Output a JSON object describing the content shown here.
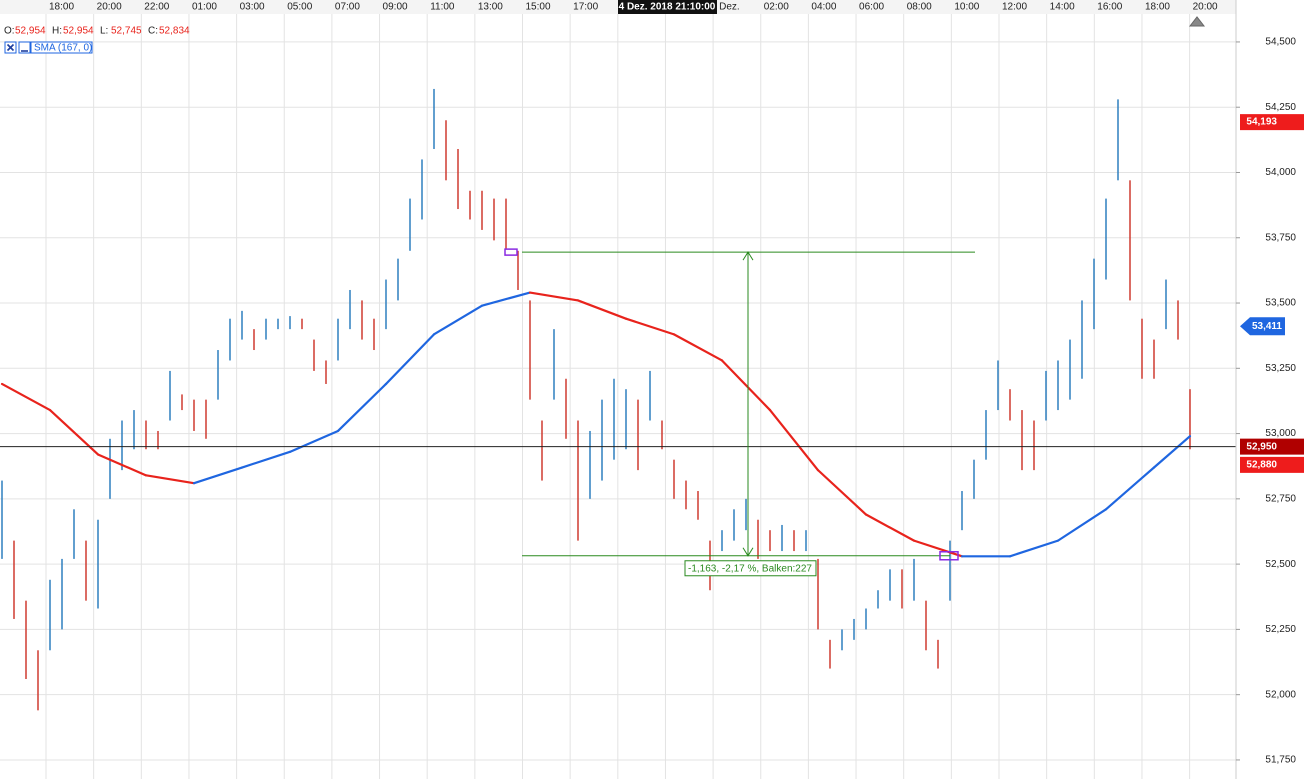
{
  "chart_data": {
    "type": "ohlc",
    "timestamp": "4 Dez. 2018 21:10:00",
    "ohlc_labels": [
      "O:",
      "H:",
      "L:",
      "C:"
    ],
    "ohlc_values": [
      "52,954",
      "52,954",
      "52,745",
      "52,834"
    ],
    "categories": [
      "18:00",
      "20:00",
      "22:00",
      "01:00",
      "03:00",
      "05:00",
      "07:00",
      "09:00",
      "11:00",
      "13:00",
      "15:00",
      "17:00",
      null,
      null,
      "Dez.",
      "02:00",
      "04:00",
      "06:00",
      "08:00",
      "10:00",
      "12:00",
      "14:00",
      "16:00",
      "18:00",
      "20:00"
    ],
    "bars": {
      "high": [
        52.82,
        52.59,
        52.36,
        52.17,
        52.44,
        52.52,
        52.71,
        52.59,
        52.67,
        52.98,
        53.05,
        53.09,
        53.05,
        53.01,
        53.24,
        53.15,
        53.13,
        53.13,
        53.32,
        53.44,
        53.47,
        53.4,
        53.44,
        53.44,
        53.45,
        53.44,
        53.36,
        53.28,
        53.44,
        53.55,
        53.51,
        53.44,
        53.59,
        53.67,
        53.9,
        54.05,
        54.32,
        54.2,
        54.09,
        53.93,
        53.93,
        53.9,
        53.9,
        53.7,
        53.51,
        53.05,
        53.4,
        53.21,
        53.05,
        53.01,
        53.13,
        53.21,
        53.17,
        53.13,
        53.24,
        53.05,
        52.9,
        52.82,
        52.78,
        52.59,
        52.63,
        52.71,
        52.75,
        52.67,
        52.63,
        52.65,
        52.63,
        52.63,
        52.52,
        52.21,
        52.25,
        52.29,
        52.33,
        52.4,
        52.48,
        52.48,
        52.52,
        52.36,
        52.21,
        52.59,
        52.78,
        52.9,
        53.09,
        53.28,
        53.17,
        53.09,
        53.05,
        53.24,
        53.28,
        53.36,
        53.51,
        53.67,
        53.9,
        54.28,
        53.97,
        53.44,
        53.36,
        53.59,
        53.51,
        53.17
      ],
      "low": [
        52.52,
        52.29,
        52.06,
        51.94,
        52.17,
        52.25,
        52.52,
        52.36,
        52.33,
        52.75,
        52.86,
        52.94,
        52.94,
        52.94,
        53.05,
        53.09,
        53.01,
        52.98,
        53.13,
        53.28,
        53.36,
        53.32,
        53.36,
        53.4,
        53.4,
        53.4,
        53.24,
        53.19,
        53.28,
        53.4,
        53.36,
        53.32,
        53.4,
        53.51,
        53.7,
        53.82,
        54.09,
        53.97,
        53.86,
        53.82,
        53.78,
        53.74,
        53.7,
        53.55,
        53.13,
        52.82,
        53.13,
        52.98,
        52.59,
        52.75,
        52.82,
        52.9,
        52.94,
        52.86,
        53.05,
        52.94,
        52.75,
        52.71,
        52.67,
        52.4,
        52.55,
        52.59,
        52.63,
        52.52,
        52.55,
        52.55,
        52.55,
        52.55,
        52.25,
        52.1,
        52.17,
        52.21,
        52.25,
        52.33,
        52.36,
        52.33,
        52.36,
        52.17,
        52.1,
        52.36,
        52.63,
        52.75,
        52.9,
        53.09,
        53.05,
        52.86,
        52.86,
        53.05,
        53.09,
        53.13,
        53.21,
        53.4,
        53.59,
        53.97,
        53.51,
        53.21,
        53.21,
        53.4,
        53.36,
        52.94
      ]
    },
    "colors": {
      "up": "#2e7fbf",
      "down": "#cf3a30"
    },
    "series": [
      {
        "name": "SMA (167, 0)",
        "color_up": "#1f66e0",
        "color_down": "#e8231c",
        "x": [
          0,
          4,
          8,
          12,
          16,
          20,
          24,
          28,
          32,
          36,
          40,
          44,
          48,
          52,
          56,
          60,
          64,
          68,
          72,
          76,
          80,
          84,
          88,
          92,
          96,
          99
        ],
        "values": [
          53.19,
          53.09,
          52.92,
          52.84,
          52.81,
          52.87,
          52.93,
          53.01,
          53.19,
          53.38,
          53.49,
          53.54,
          53.51,
          53.44,
          53.38,
          53.28,
          53.09,
          52.86,
          52.69,
          52.59,
          52.53,
          52.53,
          52.59,
          52.71,
          52.87,
          52.99
        ]
      }
    ],
    "ylim": [
      51.677,
      54.607
    ],
    "yticks": [
      {
        "value": 54.5,
        "label": "54,500"
      },
      {
        "value": 54.25,
        "label": "54,250"
      },
      {
        "value": 54,
        "label": "54,000"
      },
      {
        "value": 53.75,
        "label": "53,750"
      },
      {
        "value": 53.5,
        "label": "53,500"
      },
      {
        "value": 53.25,
        "label": "53,250"
      },
      {
        "value": 53,
        "label": "53,000"
      },
      {
        "value": 52.75,
        "label": "52,750"
      },
      {
        "value": 52.5,
        "label": "52,500"
      },
      {
        "value": 52.25,
        "label": "52,250"
      },
      {
        "value": 52,
        "label": "52,000"
      },
      {
        "value": 51.75,
        "label": "51,750"
      }
    ],
    "grid": true,
    "price_tags": [
      {
        "value": 54.193,
        "label": "54,193",
        "color": "#ee1c1c"
      },
      {
        "value": 53.411,
        "label": "53,411",
        "color": "#1f66e0"
      },
      {
        "value": 52.95,
        "label": "52,950",
        "color": "#b00000"
      },
      {
        "value": 52.88,
        "label": "52,880",
        "color": "#ee1c1c"
      }
    ],
    "measurement": {
      "from": 53.695,
      "to": 52.532,
      "label": "-1,163, -2,17 %, Balken:227",
      "color": "#2a8a1f"
    }
  }
}
